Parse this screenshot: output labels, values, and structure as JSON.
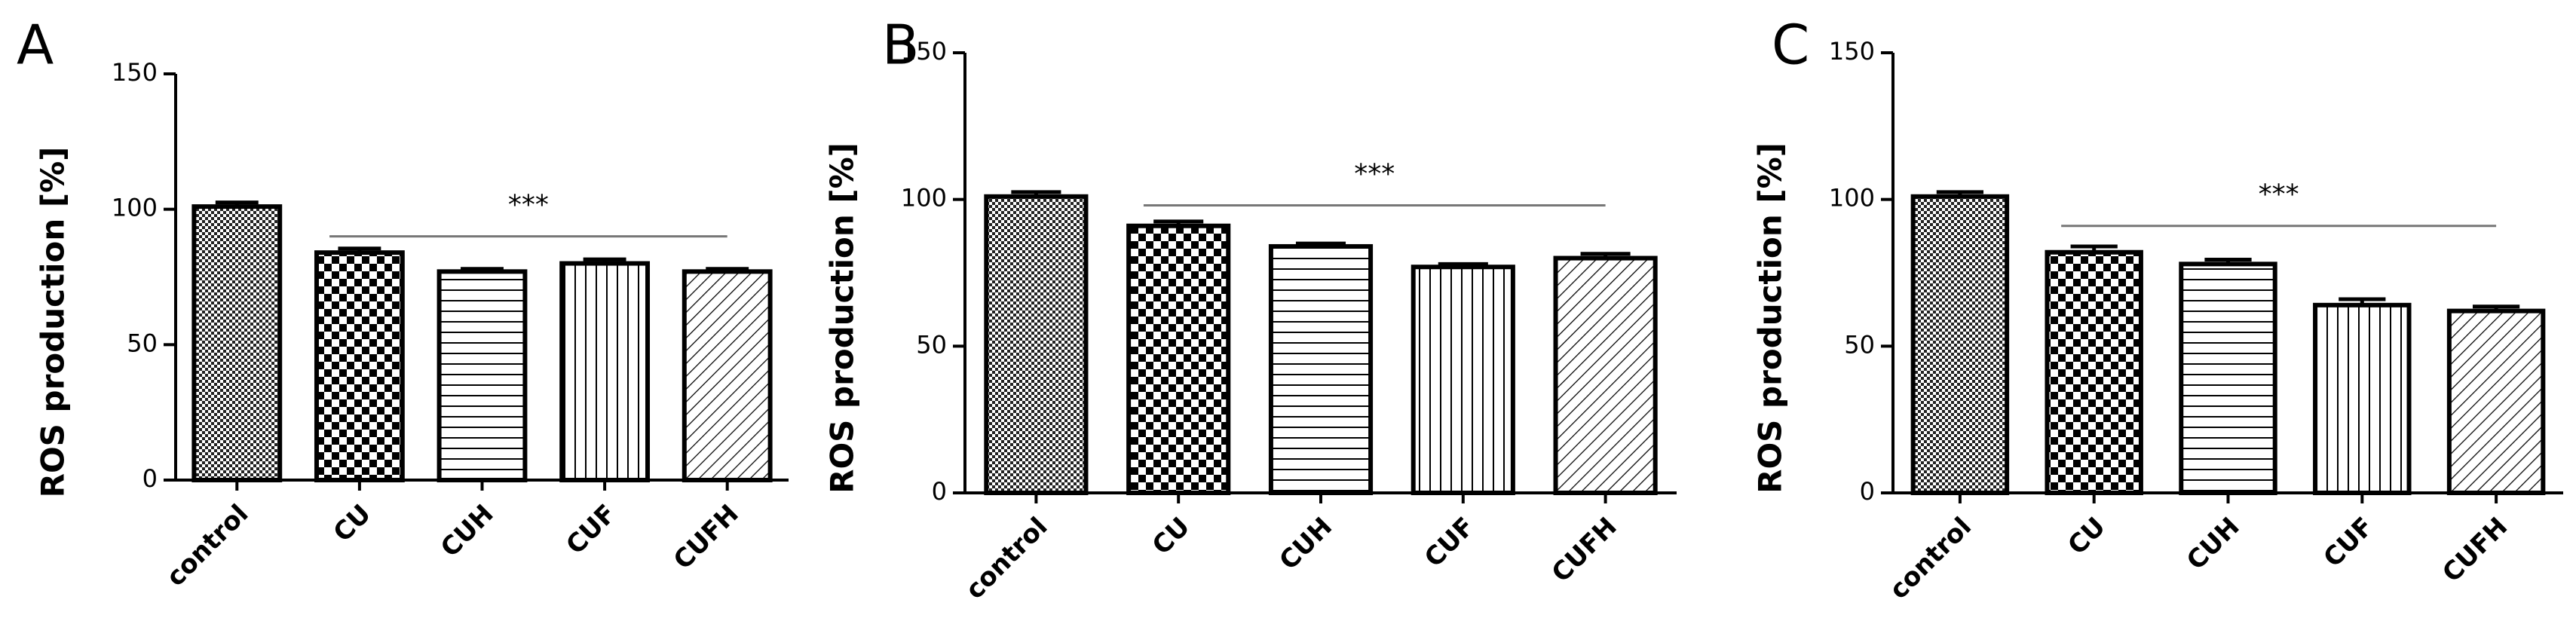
{
  "chart_data": [
    {
      "type": "bar",
      "panel": "A",
      "ylabel": "ROS production [%]",
      "categories": [
        "control",
        "CU",
        "CUH",
        "CUF",
        "CUFH"
      ],
      "values": [
        101,
        84,
        77,
        80,
        77
      ],
      "errors": [
        1.5,
        1.5,
        1,
        1.5,
        1
      ],
      "color": "#000000",
      "ylim": [
        0,
        150
      ],
      "yticks": [
        0,
        50,
        100,
        150
      ],
      "annotation": {
        "text": "***",
        "y": 90
      }
    },
    {
      "type": "bar",
      "panel": "B",
      "ylabel": "ROS production [%]",
      "categories": [
        "control",
        "CU",
        "CUH",
        "CUF",
        "CUFH"
      ],
      "values": [
        101,
        91,
        84,
        77,
        80
      ],
      "errors": [
        1.5,
        1.5,
        1,
        1,
        1.5
      ],
      "color": "#000000",
      "ylim": [
        0,
        150
      ],
      "yticks": [
        0,
        50,
        100,
        150
      ],
      "annotation": {
        "text": "***",
        "y": 98
      }
    },
    {
      "type": "bar",
      "panel": "C",
      "ylabel": "ROS production [%]",
      "categories": [
        "control",
        "CU",
        "CUH",
        "CUF",
        "CUFH"
      ],
      "values": [
        101,
        82,
        78,
        64,
        62
      ],
      "errors": [
        1.5,
        2,
        1.5,
        2,
        1.5
      ],
      "color": "#000000",
      "ylim": [
        0,
        150
      ],
      "yticks": [
        0,
        50,
        100,
        150
      ],
      "annotation": {
        "text": "***",
        "y": 91
      }
    }
  ]
}
